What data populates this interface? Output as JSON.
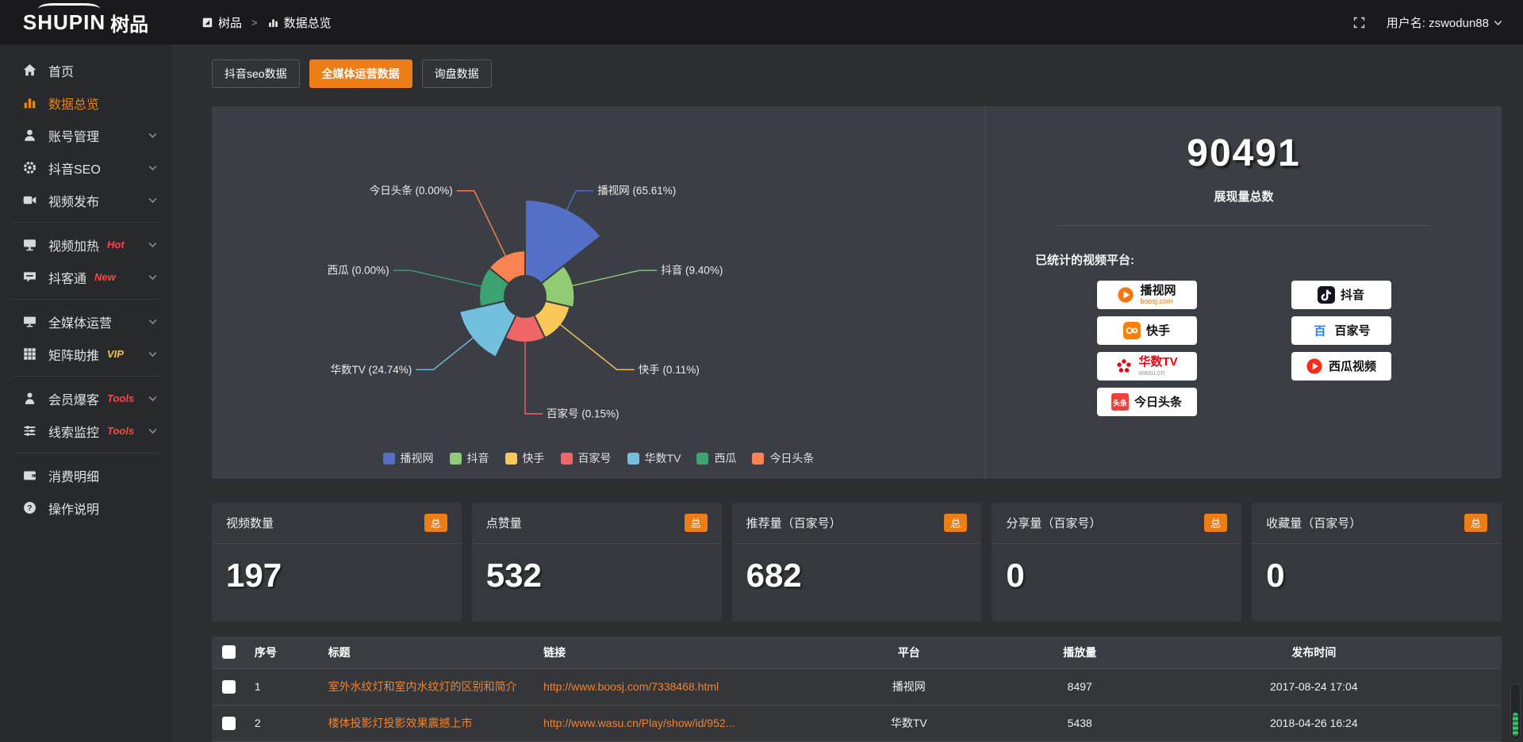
{
  "app": {
    "logo_text": "SHUPIN",
    "logo_text_cn": "树品"
  },
  "header": {
    "breadcrumb": [
      {
        "label": "树品",
        "icon": "app-window-icon"
      },
      {
        "label": "数据总览",
        "icon": "bar-chart-icon"
      }
    ],
    "breadcrumb_separator": ">",
    "username": "用户名: zswodun88"
  },
  "sidebar": {
    "items": [
      {
        "label": "首页",
        "icon": "home-icon"
      },
      {
        "label": "数据总览",
        "icon": "bar-chart-icon",
        "active": true
      },
      {
        "label": "账号管理",
        "icon": "user-icon",
        "chevron": true
      },
      {
        "label": "抖音SEO",
        "icon": "gear-icon",
        "chevron": true
      },
      {
        "label": "视频发布",
        "icon": "video-icon",
        "chevron": true,
        "divider_after": true
      },
      {
        "label": "视频加热",
        "icon": "screen-icon",
        "tag": "Hot",
        "tag_color": "#ff4545",
        "chevron": true
      },
      {
        "label": "抖客通",
        "icon": "chat-icon",
        "tag": "New",
        "tag_color": "#ff4545",
        "chevron": true,
        "divider_after": true
      },
      {
        "label": "全媒体运营",
        "icon": "monitor-icon",
        "chevron": true
      },
      {
        "label": "矩阵助推",
        "icon": "grid-icon",
        "tag": "VIP",
        "tag_color": "#f2c24a",
        "chevron": true,
        "divider_after": true
      },
      {
        "label": "会员爆客",
        "icon": "member-icon",
        "tag": "Tools",
        "tag_color": "#ff4545",
        "chevron": true
      },
      {
        "label": "线索监控",
        "icon": "sliders-icon",
        "tag": "Tools",
        "tag_color": "#ff4545",
        "chevron": true,
        "divider_after": true
      },
      {
        "label": "消费明细",
        "icon": "wallet-icon"
      },
      {
        "label": "操作说明",
        "icon": "help-icon"
      }
    ]
  },
  "tabs": [
    {
      "label": "抖音seo数据"
    },
    {
      "label": "全媒体运营数据",
      "active": true
    },
    {
      "label": "询盘数据"
    }
  ],
  "chart_data": {
    "type": "pie",
    "variant": "nightingale-rose",
    "legend_position": "bottom",
    "categories": [
      "播视网",
      "抖音",
      "快手",
      "百家号",
      "华数TV",
      "西瓜",
      "今日头条"
    ],
    "values": [
      65.61,
      9.4,
      0.11,
      0.15,
      24.74,
      0.0,
      0.0
    ],
    "unit": "%",
    "labels": [
      "播视网 (65.61%)",
      "抖音 (9.40%)",
      "快手 (0.11%)",
      "百家号 (0.15%)",
      "华数TV (24.74%)",
      "西瓜 (0.00%)",
      "今日头条 (0.00%)"
    ],
    "colors": [
      "#5470c6",
      "#91cc75",
      "#fac858",
      "#ee6666",
      "#73c0de",
      "#3ba272",
      "#fc8452"
    ]
  },
  "summary": {
    "total_value": "90491",
    "total_label": "展现量总数",
    "platforms_title": "已统计的视频平台:",
    "platforms": [
      {
        "name": "播视网",
        "sub": "boosj.com",
        "sub_color": "#f5750e",
        "icon": "boosj-logo"
      },
      {
        "name": "抖音",
        "icon": "douyin-logo"
      },
      {
        "name": "快手",
        "icon": "kuaishou-logo"
      },
      {
        "name": "百家号",
        "icon": "baijiahao-logo"
      },
      {
        "name": "华数TV",
        "name_color": "#e60012",
        "sub": "wasu.cn",
        "sub_color": "#999999",
        "icon": "wasu-logo"
      },
      {
        "name": "西瓜视频",
        "icon": "xigua-logo"
      },
      {
        "name": "今日头条",
        "icon": "toutiao-logo"
      }
    ]
  },
  "stat_cards": [
    {
      "title": "视频数量",
      "badge": "总",
      "value": "197"
    },
    {
      "title": "点赞量",
      "badge": "总",
      "value": "532"
    },
    {
      "title": "推荐量（百家号）",
      "badge": "总",
      "value": "682"
    },
    {
      "title": "分享量（百家号）",
      "badge": "总",
      "value": "0"
    },
    {
      "title": "收藏量（百家号）",
      "badge": "总",
      "value": "0"
    }
  ],
  "table": {
    "headers": [
      "序号",
      "标题",
      "链接",
      "平台",
      "播放量",
      "发布时间"
    ],
    "rows": [
      {
        "index": "1",
        "title": "室外水纹灯和室内水纹灯的区别和简介",
        "link": "http://www.boosj.com/7338468.html",
        "platform": "播视网",
        "plays": "8497",
        "published": "2017-08-24 17:04"
      },
      {
        "index": "2",
        "title": "楼体投影灯投影效果震撼上市",
        "link": "http://www.wasu.cn/Play/show/id/952...",
        "platform": "华数TV",
        "plays": "5438",
        "published": "2018-04-26 16:24"
      }
    ]
  },
  "colors": {
    "accent_orange": "#ec7d17",
    "link_orange": "#ee8433",
    "sidebar_active_orange": "#f08300",
    "tag_red": "#ff4545",
    "vip_yellow": "#f2c24a",
    "panel_bg": "#3b3e44"
  }
}
